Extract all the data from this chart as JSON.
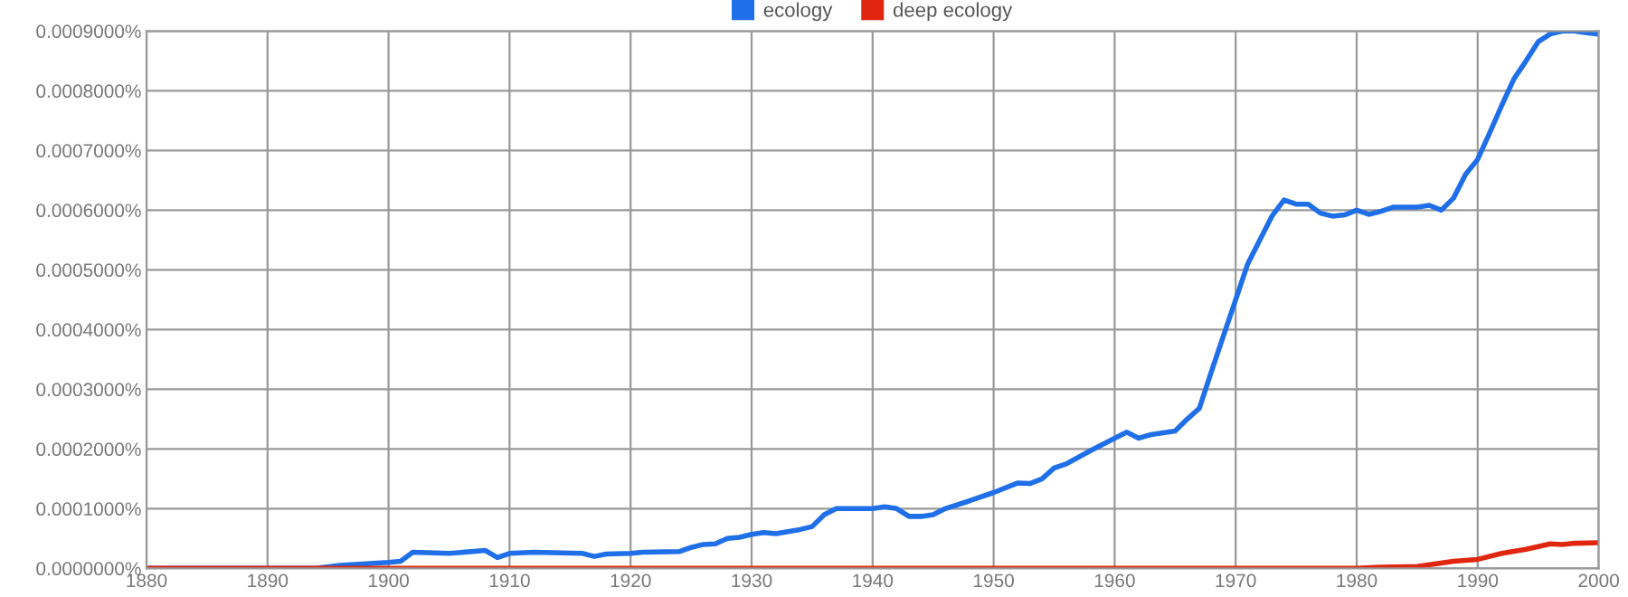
{
  "chart_data": {
    "type": "line",
    "xlim": [
      1880,
      2000
    ],
    "xticks": [
      1880,
      1890,
      1900,
      1910,
      1920,
      1930,
      1940,
      1950,
      1960,
      1970,
      1980,
      1990,
      2000
    ],
    "ylim": [
      0,
      0.0009
    ],
    "yticks": [
      {
        "value": 0,
        "label": "0.0000000%"
      },
      {
        "value": 0.0001,
        "label": "0.0001000%"
      },
      {
        "value": 0.0002,
        "label": "0.0002000%"
      },
      {
        "value": 0.0003,
        "label": "0.0003000%"
      },
      {
        "value": 0.0004,
        "label": "0.0004000%"
      },
      {
        "value": 0.0005,
        "label": "0.0005000%"
      },
      {
        "value": 0.0006,
        "label": "0.0006000%"
      },
      {
        "value": 0.0007,
        "label": "0.0007000%"
      },
      {
        "value": 0.0008,
        "label": "0.0008000%"
      },
      {
        "value": 0.0009,
        "label": "0.0009000%"
      }
    ],
    "grid": true,
    "legend": "top",
    "marker": "none",
    "line_style": "solid",
    "series": [
      {
        "name": "ecology",
        "color": "#1f6fe8",
        "x": [
          1880,
          1894,
          1896,
          1900,
          1901,
          1902,
          1905,
          1908,
          1909,
          1910,
          1912,
          1916,
          1917,
          1918,
          1920,
          1921,
          1924,
          1925,
          1926,
          1927,
          1928,
          1929,
          1930,
          1931,
          1932,
          1934,
          1935,
          1936,
          1937,
          1939,
          1940,
          1941,
          1942,
          1943,
          1944,
          1945,
          1946,
          1948,
          1950,
          1952,
          1953,
          1954,
          1955,
          1956,
          1958,
          1960,
          1961,
          1962,
          1963,
          1965,
          1966,
          1967,
          1968,
          1969,
          1970,
          1971,
          1972,
          1973,
          1974,
          1975,
          1976,
          1977,
          1978,
          1979,
          1980,
          1981,
          1982,
          1983,
          1985,
          1986,
          1987,
          1988,
          1989,
          1990,
          1991,
          1992,
          1993,
          1994,
          1995,
          1996,
          1997,
          1998,
          1999,
          2000
        ],
        "values": [
          0,
          0,
          5e-06,
          1e-05,
          1.2e-05,
          2.7e-05,
          2.5e-05,
          3e-05,
          1.8e-05,
          2.5e-05,
          2.7e-05,
          2.5e-05,
          2e-05,
          2.4e-05,
          2.5e-05,
          2.7e-05,
          2.8e-05,
          3.5e-05,
          4e-05,
          4.1e-05,
          5e-05,
          5.2e-05,
          5.7e-05,
          6e-05,
          5.8e-05,
          6.5e-05,
          7e-05,
          9e-05,
          0.0001,
          0.0001,
          0.0001,
          0.000103,
          0.0001,
          8.7e-05,
          8.7e-05,
          9e-05,
          0.0001,
          0.000113,
          0.000127,
          0.000143,
          0.000142,
          0.00015,
          0.000168,
          0.000175,
          0.000197,
          0.000218,
          0.000228,
          0.000218,
          0.000224,
          0.00023,
          0.00025,
          0.000268,
          0.00033,
          0.00039,
          0.00045,
          0.00051,
          0.00055,
          0.00059,
          0.000617,
          0.00061,
          0.00061,
          0.000595,
          0.00059,
          0.000592,
          0.0006,
          0.000593,
          0.000598,
          0.000605,
          0.000605,
          0.000608,
          0.0006,
          0.00062,
          0.00066,
          0.000685,
          0.00073,
          0.000776,
          0.00082,
          0.00085,
          0.000882,
          0.000895,
          0.0009,
          0.0009,
          0.000897,
          0.000895
        ]
      },
      {
        "name": "deep ecology",
        "color": "#e0260f",
        "x": [
          1880,
          1980,
          1982,
          1985,
          1988,
          1990,
          1992,
          1994,
          1996,
          1997,
          1998,
          2000
        ],
        "values": [
          0,
          0,
          2e-06,
          3e-06,
          1.2e-05,
          1.5e-05,
          2.5e-05,
          3.2e-05,
          4.1e-05,
          4e-05,
          4.2e-05,
          4.3e-05
        ]
      }
    ]
  }
}
